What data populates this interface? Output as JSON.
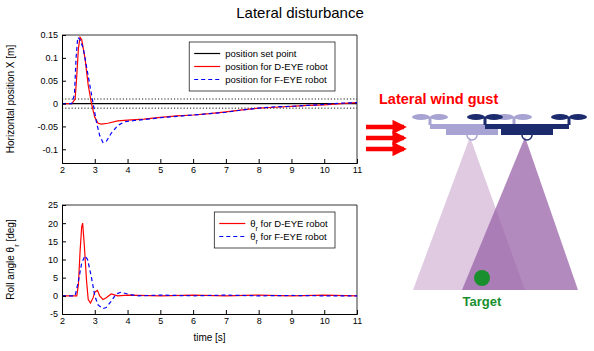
{
  "title": "Lateral disturbance",
  "chart_data": [
    {
      "type": "line",
      "ylabel": "Horizontal position X [m]",
      "xlim": [
        2,
        11
      ],
      "xticks": [
        2,
        3,
        4,
        5,
        6,
        7,
        8,
        9,
        10,
        11
      ],
      "ylim": [
        -0.13,
        0.15
      ],
      "yticks": [
        -0.1,
        -0.05,
        0,
        0.05,
        0.1,
        0.15
      ],
      "grid": false,
      "legend": "upper right",
      "tolerance": [
        -0.01,
        0.01
      ],
      "series": [
        {
          "name": "position set point",
          "color": "#000000",
          "line_style": "solid",
          "x": [
            2,
            11
          ],
          "values": [
            0,
            0
          ]
        },
        {
          "name": "position for D-EYE robot",
          "color": "#ff0000",
          "line_style": "solid",
          "x": [
            2,
            2.3,
            2.4,
            2.45,
            2.5,
            2.55,
            2.6,
            2.7,
            2.8,
            2.9,
            3.0,
            3.1,
            3.2,
            3.4,
            3.7,
            4,
            4.5,
            5,
            5.5,
            6,
            6.5,
            7,
            7.5,
            8,
            8.5,
            9,
            9.5,
            10,
            10.5,
            11
          ],
          "values": [
            0,
            0,
            0.01,
            0.06,
            0.12,
            0.145,
            0.14,
            0.1,
            0.04,
            0.0,
            -0.03,
            -0.043,
            -0.045,
            -0.043,
            -0.038,
            -0.036,
            -0.034,
            -0.03,
            -0.027,
            -0.025,
            -0.022,
            -0.018,
            -0.014,
            -0.01,
            -0.008,
            -0.006,
            -0.004,
            -0.003,
            0,
            0.002
          ]
        },
        {
          "name": "position for F-EYE robot",
          "color": "#0000ff",
          "line_style": "dashed",
          "x": [
            2,
            2.3,
            2.38,
            2.43,
            2.48,
            2.55,
            2.65,
            2.75,
            2.85,
            2.95,
            3.05,
            3.15,
            3.25,
            3.35,
            3.5,
            3.7,
            3.9,
            4.2,
            4.5,
            5,
            5.5,
            6,
            6.5,
            7,
            7.5,
            8,
            8.5,
            9,
            9.5,
            10,
            10.5,
            11
          ],
          "values": [
            0,
            0,
            0.02,
            0.1,
            0.145,
            0.14,
            0.12,
            0.08,
            0.04,
            0.0,
            -0.04,
            -0.07,
            -0.085,
            -0.083,
            -0.065,
            -0.048,
            -0.04,
            -0.037,
            -0.035,
            -0.031,
            -0.028,
            -0.025,
            -0.022,
            -0.019,
            -0.014,
            -0.01,
            -0.007,
            -0.006,
            -0.004,
            -0.002,
            0.001,
            0.002
          ]
        }
      ]
    },
    {
      "type": "line",
      "xlabel": "time [s]",
      "ylabel": "Roll angle θr [deg]",
      "xlim": [
        2,
        11
      ],
      "xticks": [
        2,
        3,
        4,
        5,
        6,
        7,
        8,
        9,
        10,
        11
      ],
      "ylim": [
        -5,
        25
      ],
      "yticks": [
        -5,
        0,
        5,
        10,
        15,
        20,
        25
      ],
      "grid": false,
      "legend": "upper right",
      "series": [
        {
          "name": "θr for D-EYE robot",
          "color": "#ff0000",
          "line_style": "solid",
          "x": [
            2,
            2.45,
            2.5,
            2.55,
            2.6,
            2.63,
            2.68,
            2.75,
            2.8,
            2.87,
            2.95,
            3.0,
            3.08,
            3.15,
            3.25,
            3.35,
            3.5,
            3.7,
            4,
            5,
            6,
            7,
            8,
            9,
            10,
            11
          ],
          "values": [
            0,
            0,
            3,
            12,
            19,
            20,
            14,
            4,
            -1,
            -2,
            -0.5,
            1,
            1.5,
            0,
            -1,
            -0.5,
            0.5,
            0,
            0.2,
            0,
            0.2,
            0,
            0.2,
            0,
            0.2,
            0
          ]
        },
        {
          "name": "θr for F-EYE robot",
          "color": "#0000ff",
          "line_style": "dashed",
          "x": [
            2,
            2.4,
            2.5,
            2.6,
            2.7,
            2.78,
            2.9,
            3.0,
            3.1,
            3.25,
            3.35,
            3.5,
            3.65,
            3.8,
            4,
            4.3,
            5,
            6,
            7,
            8,
            9,
            10,
            11
          ],
          "values": [
            0,
            0,
            4,
            9,
            11,
            10,
            5,
            0,
            -2.5,
            -3.5,
            -3.2,
            -1.5,
            0.5,
            1,
            0.5,
            0,
            0.2,
            0,
            0.2,
            0,
            0.1,
            0,
            0
          ]
        }
      ]
    }
  ],
  "diagram": {
    "label": "Lateral wind gust",
    "target": "Target"
  }
}
